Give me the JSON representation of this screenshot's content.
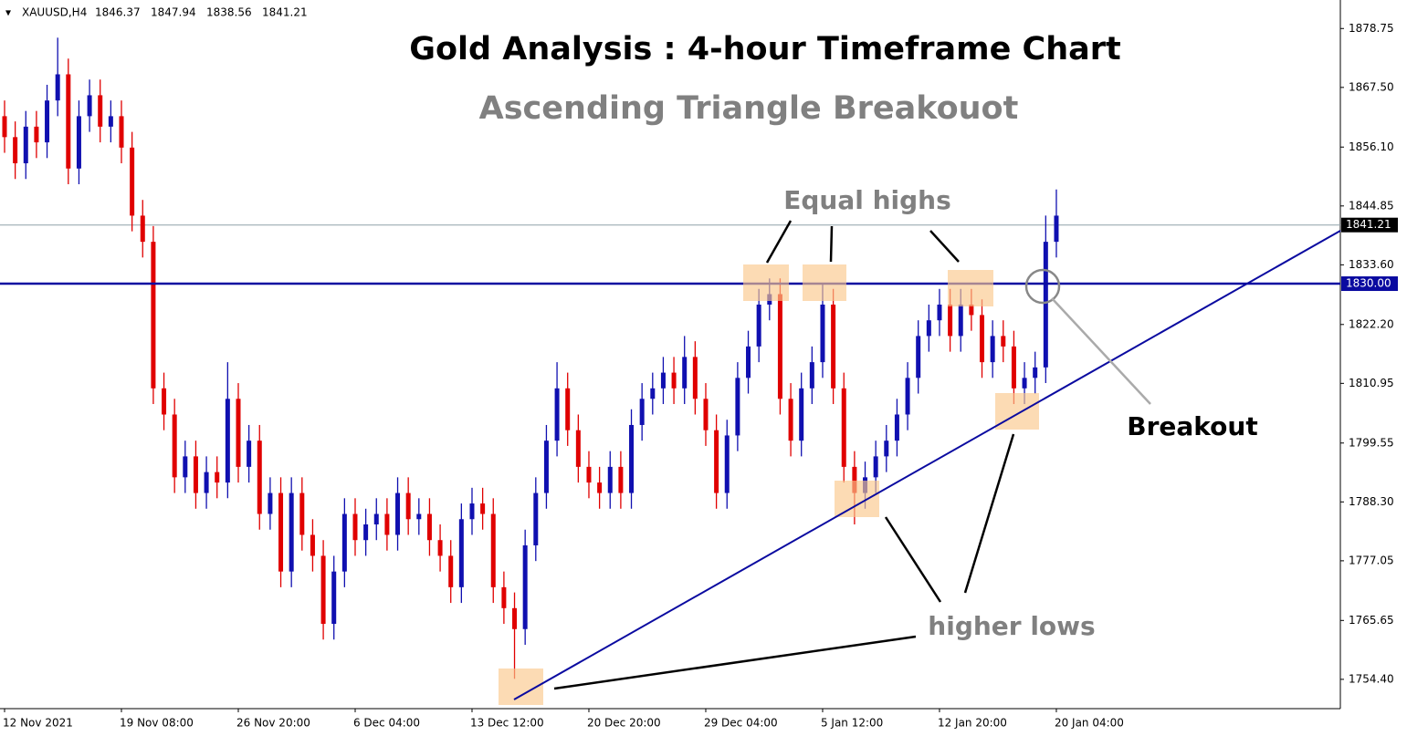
{
  "chart_data": {
    "type": "candlestick",
    "header": {
      "symbol": "XAUUSD,H4",
      "ohlc": [
        1846.37,
        1847.94,
        1838.56,
        1841.21
      ]
    },
    "title": "Gold Analysis : 4-hour Timeframe Chart",
    "subtitle": "Ascending Triangle Breakouot",
    "annotations": {
      "equal_highs": "Equal highs",
      "higher_lows": "higher lows",
      "breakout": "Breakout"
    },
    "up_color": "#1010b0",
    "down_color": "#e00000",
    "categories": [
      "12 Nov 2021",
      null,
      null,
      null,
      null,
      null,
      null,
      null,
      null,
      null,
      null,
      "19 Nov 08:00",
      null,
      null,
      null,
      null,
      null,
      null,
      null,
      null,
      null,
      null,
      "26 Nov 20:00",
      null,
      null,
      null,
      null,
      null,
      null,
      null,
      null,
      null,
      null,
      "6 Dec 04:00",
      null,
      null,
      null,
      null,
      null,
      null,
      null,
      null,
      null,
      null,
      "13 Dec 12:00",
      null,
      null,
      null,
      null,
      null,
      null,
      null,
      null,
      null,
      null,
      "20 Dec 20:00",
      null,
      null,
      null,
      null,
      null,
      null,
      null,
      null,
      null,
      null,
      "29 Dec 04:00",
      null,
      null,
      null,
      null,
      null,
      null,
      null,
      null,
      null,
      null,
      "5 Jan 12:00",
      null,
      null,
      null,
      null,
      null,
      null,
      null,
      null,
      null,
      null,
      "12 Jan 20:00",
      null,
      null,
      null,
      null,
      null,
      null,
      null,
      null,
      null,
      null,
      "20 Jan 04:00"
    ],
    "open": [
      1862,
      1858,
      1853,
      1860,
      1857,
      1865,
      1870,
      1852,
      1862,
      1866,
      1860,
      1862,
      1856,
      1843,
      1838,
      1810,
      1805,
      1793,
      1797,
      1790,
      1794,
      1792,
      1808,
      1795,
      1800,
      1786,
      1790,
      1775,
      1790,
      1782,
      1778,
      1765,
      1775,
      1786,
      1781,
      1784,
      1786,
      1782,
      1790,
      1785,
      1786,
      1781,
      1778,
      1772,
      1785,
      1788,
      1786,
      1772,
      1768,
      1764,
      1780,
      1790,
      1800,
      1810,
      1802,
      1795,
      1792,
      1790,
      1795,
      1790,
      1803,
      1808,
      1810,
      1813,
      1810,
      1816,
      1808,
      1802,
      1790,
      1801,
      1812,
      1818,
      1826,
      1828,
      1808,
      1800,
      1810,
      1815,
      1826,
      1810,
      1795,
      1790,
      1793,
      1797,
      1800,
      1805,
      1812,
      1820,
      1823,
      1826,
      1820,
      1826,
      1824,
      1815,
      1820,
      1818,
      1810,
      1812,
      1814,
      1838
    ],
    "high": [
      1865,
      1861,
      1863,
      1863,
      1868,
      1877,
      1873,
      1865,
      1869,
      1869,
      1865,
      1865,
      1859,
      1846,
      1841,
      1813,
      1808,
      1800,
      1800,
      1797,
      1797,
      1815,
      1811,
      1803,
      1803,
      1793,
      1793,
      1793,
      1793,
      1785,
      1781,
      1778,
      1789,
      1789,
      1787,
      1789,
      1789,
      1793,
      1793,
      1789,
      1789,
      1784,
      1781,
      1788,
      1791,
      1791,
      1789,
      1775,
      1771,
      1783,
      1793,
      1803,
      1815,
      1813,
      1805,
      1798,
      1795,
      1798,
      1798,
      1806,
      1811,
      1813,
      1816,
      1816,
      1820,
      1819,
      1811,
      1805,
      1804,
      1815,
      1821,
      1829,
      1831,
      1831,
      1811,
      1813,
      1818,
      1830,
      1829,
      1813,
      1798,
      1796,
      1800,
      1803,
      1808,
      1815,
      1823,
      1826,
      1829,
      1829,
      1829,
      1829,
      1827,
      1823,
      1823,
      1821,
      1815,
      1817,
      1843,
      1848
    ],
    "low": [
      1855,
      1850,
      1850,
      1854,
      1854,
      1862,
      1849,
      1849,
      1859,
      1857,
      1857,
      1853,
      1840,
      1835,
      1807,
      1802,
      1790,
      1790,
      1787,
      1787,
      1789,
      1789,
      1792,
      1792,
      1783,
      1783,
      1772,
      1772,
      1779,
      1775,
      1762,
      1762,
      1772,
      1778,
      1778,
      1781,
      1779,
      1779,
      1782,
      1782,
      1778,
      1775,
      1769,
      1769,
      1782,
      1783,
      1769,
      1765,
      1754.5,
      1761,
      1777,
      1787,
      1797,
      1799,
      1792,
      1789,
      1787,
      1787,
      1787,
      1787,
      1800,
      1805,
      1807,
      1807,
      1807,
      1805,
      1799,
      1787,
      1787,
      1798,
      1809,
      1815,
      1823,
      1805,
      1797,
      1797,
      1807,
      1812,
      1807,
      1792,
      1784,
      1787,
      1790,
      1794,
      1797,
      1802,
      1809,
      1817,
      1820,
      1817,
      1817,
      1821,
      1812,
      1812,
      1815,
      1807,
      1807,
      1809,
      1811,
      1835
    ],
    "close": [
      1858,
      1853,
      1860,
      1857,
      1865,
      1870,
      1852,
      1862,
      1866,
      1860,
      1862,
      1856,
      1843,
      1838,
      1810,
      1805,
      1793,
      1797,
      1790,
      1794,
      1792,
      1808,
      1795,
      1800,
      1786,
      1790,
      1775,
      1790,
      1782,
      1778,
      1765,
      1775,
      1786,
      1781,
      1784,
      1786,
      1782,
      1790,
      1785,
      1786,
      1781,
      1778,
      1772,
      1785,
      1788,
      1786,
      1772,
      1768,
      1764,
      1780,
      1790,
      1800,
      1810,
      1802,
      1795,
      1792,
      1790,
      1795,
      1790,
      1803,
      1808,
      1810,
      1813,
      1810,
      1816,
      1808,
      1802,
      1790,
      1801,
      1812,
      1818,
      1826,
      1828,
      1808,
      1800,
      1810,
      1815,
      1826,
      1810,
      1795,
      1790,
      1793,
      1797,
      1800,
      1805,
      1812,
      1820,
      1823,
      1826,
      1820,
      1826,
      1824,
      1815,
      1820,
      1818,
      1810,
      1812,
      1814,
      1838,
      1843
    ],
    "ylim": [
      1748.8,
      1884.2
    ],
    "yticks": [
      1878.75,
      {
        "value": 1867.5,
        "label": "1867.50"
      },
      {
        "value": 1856.1,
        "label": "1856.10"
      },
      1844.85,
      {
        "value": 1833.6,
        "label": "1833.60"
      },
      {
        "value": 1822.2,
        "label": "1822.20"
      },
      1810.95,
      1799.55,
      {
        "value": 1788.3,
        "label": "1788.30"
      },
      1777.05,
      1765.65,
      {
        "value": 1754.4,
        "label": "1754.40"
      }
    ],
    "level": {
      "value": 1830,
      "label": "1830.00",
      "color": "#0a0aa0"
    },
    "current_price": {
      "value": 1841.21,
      "label": "1841.21"
    }
  }
}
